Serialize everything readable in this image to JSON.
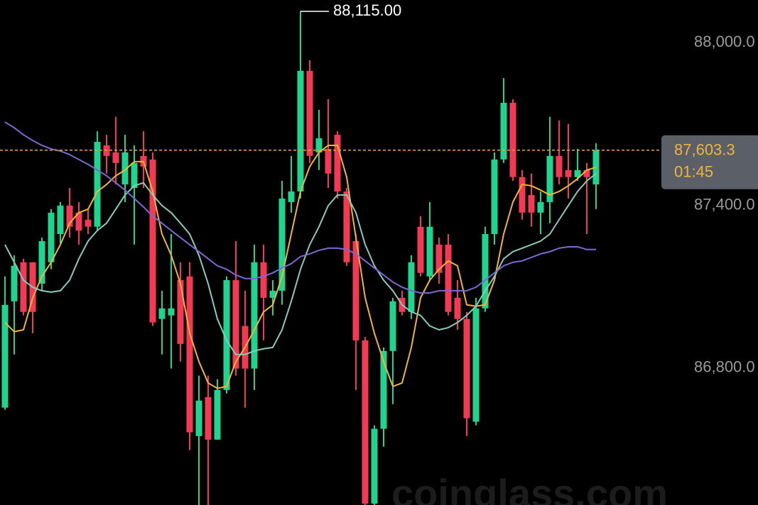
{
  "chart_data": {
    "type": "candlestick",
    "open": [
      86654,
      87046,
      87190,
      87190,
      87111,
      87190,
      87294,
      87399,
      87373,
      87347,
      87321,
      87621,
      87595,
      87477,
      87464,
      87582,
      87569,
      86981,
      86994,
      87124,
      87138,
      86549,
      86693,
      86536,
      86719,
      87124,
      86955,
      86798,
      87190,
      87059,
      87085,
      87412,
      87451,
      87896,
      87595,
      87608,
      87660,
      87451,
      87268,
      86902,
      86300,
      86576,
      86863,
      87059,
      87007,
      87321,
      87138,
      87255,
      87255,
      87059,
      86981,
      86602,
      87020,
      87294,
      87569,
      87778,
      87504,
      87438,
      87373,
      87412,
      87582,
      87530,
      87504,
      87530,
      87477
    ],
    "high": [
      87138,
      87216,
      87203,
      87190,
      87281,
      87386,
      87412,
      87464,
      87412,
      87386,
      87673,
      87660,
      87726,
      87660,
      87621,
      87673,
      87595,
      87085,
      87294,
      87190,
      87190,
      86772,
      86772,
      86759,
      87138,
      87268,
      87085,
      87255,
      87255,
      87124,
      87490,
      87582,
      88115,
      87935,
      87752,
      87791,
      87673,
      87464,
      87294,
      86915,
      86589,
      86876,
      87059,
      87085,
      87216,
      87360,
      87412,
      87281,
      87294,
      87124,
      87007,
      87059,
      87321,
      87595,
      87869,
      87791,
      87530,
      87517,
      87451,
      87726,
      87713,
      87700,
      87608,
      87556,
      87629
    ],
    "low": [
      86646,
      86850,
      86994,
      86928,
      87085,
      87164,
      87255,
      87281,
      87255,
      87294,
      87307,
      87517,
      87477,
      87412,
      87255,
      87464,
      86955,
      86850,
      86798,
      86824,
      86497,
      86280,
      86280,
      86536,
      86706,
      86772,
      86654,
      86719,
      86902,
      86994,
      87033,
      87373,
      87425,
      87556,
      87530,
      87464,
      87425,
      87177,
      86719,
      86280,
      86280,
      86510,
      86667,
      86994,
      86981,
      87138,
      87124,
      87111,
      86994,
      86941,
      86549,
      86589,
      87007,
      87255,
      87556,
      87490,
      87347,
      87321,
      87294,
      87334,
      87477,
      87425,
      87490,
      87294,
      87386
    ],
    "close": [
      87033,
      87177,
      87007,
      87007,
      87268,
      87373,
      87399,
      87321,
      87307,
      87321,
      87634,
      87582,
      87556,
      87595,
      87556,
      87543,
      86968,
      87020,
      87020,
      86889,
      86563,
      86680,
      86536,
      86719,
      87124,
      86798,
      86798,
      87190,
      87059,
      87085,
      87425,
      87451,
      87896,
      87582,
      87647,
      87517,
      87451,
      87190,
      86902,
      86300,
      86576,
      86863,
      87046,
      87007,
      87190,
      87151,
      87321,
      87151,
      87007,
      86981,
      86615,
      87020,
      87294,
      87569,
      87778,
      87504,
      87373,
      87373,
      87412,
      87582,
      87504,
      87504,
      87530,
      87504,
      87603.3
    ],
    "up_color": "#20d48f",
    "down_color": "#f23a55",
    "series": [
      {
        "color": "#f2b531",
        "values": [
          86968,
          86934,
          86941,
          87059,
          87138,
          87190,
          87255,
          87334,
          87373,
          87386,
          87451,
          87477,
          87509,
          87530,
          87561,
          87561,
          87451,
          87294,
          87216,
          87111,
          86928,
          86824,
          86745,
          86725,
          86732,
          86824,
          86876,
          86941,
          87007,
          87033,
          87138,
          87294,
          87451,
          87543,
          87595,
          87621,
          87621,
          87504,
          87281,
          87059,
          86928,
          86824,
          86732,
          86745,
          86876,
          87059,
          87124,
          87164,
          87195,
          87177,
          87033,
          87028,
          87033,
          87124,
          87294,
          87412,
          87477,
          87472,
          87456,
          87438,
          87451,
          87472,
          87498,
          87530,
          87540
        ]
      },
      {
        "color": "#86cbbd",
        "values": [
          87255,
          87190,
          87124,
          87098,
          87085,
          87080,
          87085,
          87124,
          87203,
          87268,
          87307,
          87334,
          87386,
          87438,
          87472,
          87483,
          87438,
          87399,
          87373,
          87334,
          87294,
          87216,
          87111,
          86981,
          86902,
          86850,
          86850,
          86863,
          86871,
          86876,
          86941,
          87046,
          87164,
          87255,
          87321,
          87399,
          87438,
          87438,
          87373,
          87255,
          87177,
          87124,
          87085,
          87033,
          87007,
          86994,
          86955,
          86941,
          86949,
          86968,
          86994,
          87028,
          87085,
          87138,
          87203,
          87229,
          87242,
          87255,
          87268,
          87294,
          87347,
          87399,
          87451,
          87490,
          87517
        ]
      },
      {
        "color": "#7c68d2",
        "values": [
          87707,
          87686,
          87660,
          87639,
          87621,
          87608,
          87600,
          87587,
          87569,
          87551,
          87530,
          87509,
          87483,
          87456,
          87425,
          87394,
          87360,
          87334,
          87307,
          87281,
          87255,
          87229,
          87203,
          87177,
          87164,
          87143,
          87130,
          87130,
          87138,
          87151,
          87169,
          87185,
          87211,
          87221,
          87234,
          87242,
          87242,
          87237,
          87221,
          87195,
          87169,
          87143,
          87117,
          87098,
          87085,
          87077,
          87077,
          87085,
          87085,
          87085,
          87085,
          87098,
          87124,
          87151,
          87177,
          87190,
          87195,
          87208,
          87221,
          87229,
          87242,
          87247,
          87247,
          87237,
          87237
        ]
      }
    ],
    "ylim": [
      86295,
      88157
    ],
    "yticks": [
      {
        "value": 88000,
        "label": "88,000.0"
      },
      {
        "value": 87400,
        "label": "87,400.0"
      },
      {
        "value": 86800,
        "label": "86,800.0"
      }
    ],
    "max_marker": {
      "value": 88115,
      "label": "88,115.00"
    },
    "last_price": {
      "value": 87603.3,
      "label": "87,603.3"
    },
    "countdown": "01:45",
    "watermark": "coinglass.com"
  }
}
